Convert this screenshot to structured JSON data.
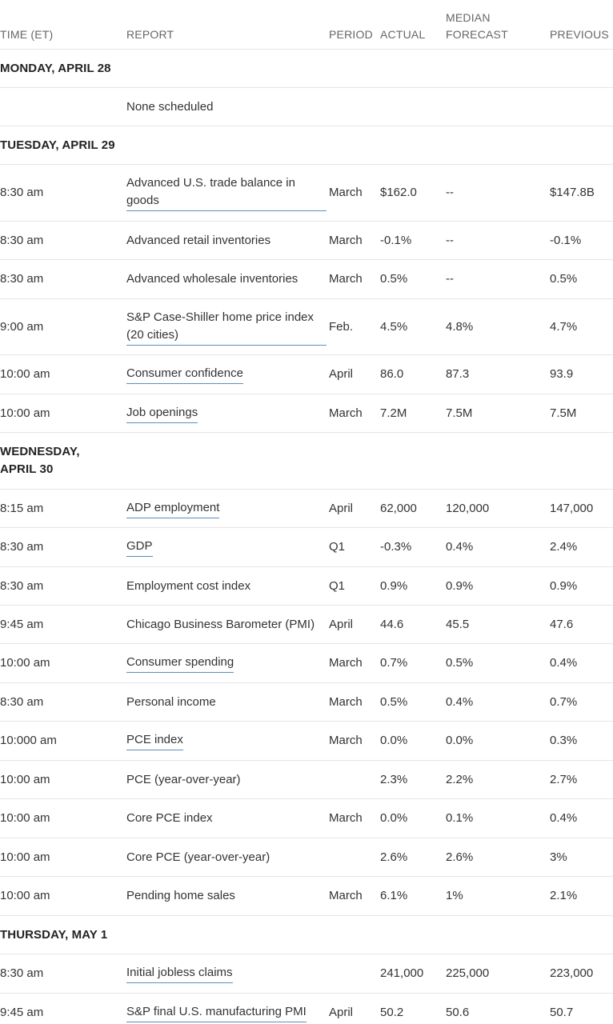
{
  "header": {
    "time": "TIME (ET)",
    "report": "REPORT",
    "period": "PERIOD",
    "actual": "ACTUAL",
    "forecast_line1": "MEDIAN",
    "forecast_line2": "FORECAST",
    "previous": "PREVIOUS"
  },
  "days": [
    {
      "label": "MONDAY, APRIL 28",
      "rows": [
        {
          "time": "",
          "report": "None scheduled",
          "link": false,
          "period": "",
          "actual": "",
          "forecast": "",
          "previous": ""
        }
      ]
    },
    {
      "label": "TUESDAY, APRIL 29",
      "rows": [
        {
          "time": "8:30 am",
          "report": "Advanced U.S. trade balance in goods",
          "link": true,
          "period": "March",
          "actual": "$162.0",
          "forecast": "--",
          "previous": "$147.8B"
        },
        {
          "time": "8:30 am",
          "report": "Advanced retail inventories",
          "link": false,
          "period": "March",
          "actual": "-0.1%",
          "forecast": "--",
          "previous": "-0.1%"
        },
        {
          "time": "8:30 am",
          "report": "Advanced wholesale inventories",
          "link": false,
          "period": "March",
          "actual": "0.5%",
          "forecast": "--",
          "previous": "0.5%"
        },
        {
          "time": "9:00 am",
          "report": "S&P Case-Shiller home price index (20 cities)",
          "link": true,
          "period": "Feb.",
          "actual": "4.5%",
          "forecast": "4.8%",
          "previous": "4.7%"
        },
        {
          "time": "10:00 am",
          "report": "Consumer confidence",
          "link": true,
          "period": "April",
          "actual": "86.0",
          "forecast": "87.3",
          "previous": "93.9"
        },
        {
          "time": "10:00 am",
          "report": "Job openings",
          "link": true,
          "period": "March",
          "actual": "7.2M",
          "forecast": "7.5M",
          "previous": "7.5M"
        }
      ]
    },
    {
      "label_line1": "WEDNESDAY,",
      "label_line2": "APRIL 30",
      "rows": [
        {
          "time": "8:15 am",
          "report": "ADP employment",
          "link": true,
          "period": "April",
          "actual": "62,000",
          "forecast": "120,000",
          "previous": "147,000"
        },
        {
          "time": "8:30 am",
          "report": "GDP",
          "link": true,
          "period": "Q1",
          "actual": "-0.3%",
          "forecast": "0.4%",
          "previous": "2.4%"
        },
        {
          "time": "8:30 am",
          "report": "Employment cost index",
          "link": false,
          "period": "Q1",
          "actual": "0.9%",
          "forecast": "0.9%",
          "previous": "0.9%"
        },
        {
          "time": "9:45 am",
          "report": "Chicago Business Barometer (PMI)",
          "link": false,
          "period": "April",
          "actual": "44.6",
          "forecast": "45.5",
          "previous": "47.6"
        },
        {
          "time": "10:00 am",
          "report": "Consumer spending",
          "link": true,
          "period": "March",
          "actual": "0.7%",
          "forecast": "0.5%",
          "previous": "0.4%"
        },
        {
          "time": "8:30 am",
          "report": "Personal income",
          "link": false,
          "period": "March",
          "actual": "0.5%",
          "forecast": "0.4%",
          "previous": "0.7%"
        },
        {
          "time": "10:000 am",
          "report": "PCE index",
          "link": true,
          "period": "March",
          "actual": "0.0%",
          "forecast": "0.0%",
          "previous": "0.3%"
        },
        {
          "time": "10:00 am",
          "report": "PCE (year-over-year)",
          "link": false,
          "period": "",
          "actual": "2.3%",
          "forecast": "2.2%",
          "previous": "2.7%"
        },
        {
          "time": "10:00 am",
          "report": "Core PCE index",
          "link": false,
          "period": "March",
          "actual": "0.0%",
          "forecast": "0.1%",
          "previous": "0.4%"
        },
        {
          "time": "10:00 am",
          "report": "Core PCE (year-over-year)",
          "link": false,
          "period": "",
          "actual": "2.6%",
          "forecast": "2.6%",
          "previous": "3%"
        },
        {
          "time": "10:00 am",
          "report": "Pending home sales",
          "link": false,
          "period": "March",
          "actual": "6.1%",
          "forecast": "1%",
          "previous": "2.1%"
        }
      ]
    },
    {
      "label": "THURSDAY, MAY 1",
      "rows": [
        {
          "time": "8:30 am",
          "report": "Initial jobless claims",
          "link": true,
          "period": "",
          "actual": "241,000",
          "forecast": "225,000",
          "previous": "223,000"
        },
        {
          "time": "9:45 am",
          "report": "S&P final U.S. manufacturing PMI",
          "link": true,
          "period": "April",
          "actual": "50.2",
          "forecast": "50.6",
          "previous": "50.7"
        }
      ]
    }
  ],
  "colors": {
    "link_underline": "#5b8fb9",
    "divider": "#e5e5e5",
    "header_text": "#666666"
  }
}
